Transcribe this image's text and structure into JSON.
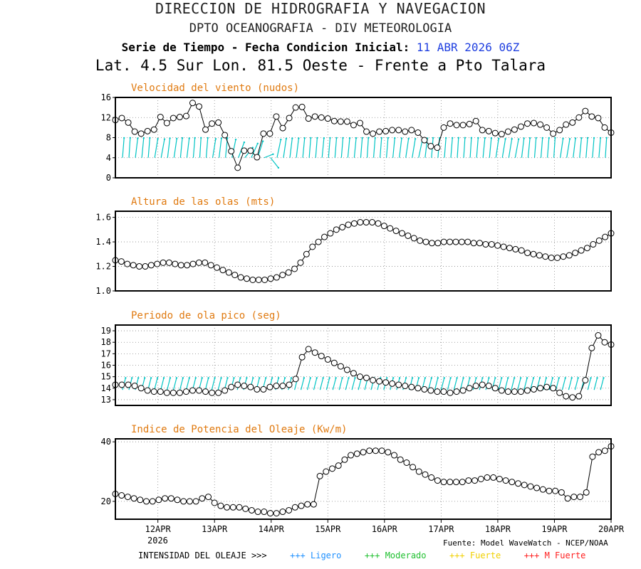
{
  "header": {
    "title": "DIRECCION DE HIDROGRAFIA Y NAVEGACION",
    "subtitle": "DPTO OCEANOGRAFIA - DIV METEOROLOGIA",
    "series_label": "Serie de Tiempo - Fecha Condicion Inicial:",
    "init_date": "11 ABR 2026 06Z",
    "location": "Lat. 4.5 Sur  Lon. 81.5 Oeste - Frente a Pto Talara"
  },
  "x_axis": {
    "start": "11 ABR 2026 06Z",
    "end": "20 ABR 2026 00Z",
    "tick_labels": [
      "12APR",
      "13APR",
      "14APR",
      "15APR",
      "16APR",
      "17APR",
      "18APR",
      "19APR",
      "20APR"
    ],
    "year_label": "2026"
  },
  "footer": {
    "source": "Fuente: Model WaveWatch - NCEP/NOAA",
    "legend_title": "INTENSIDAD DEL OLEAJE >>>",
    "legend_items": [
      {
        "label": "+++ Ligero",
        "color": "#1e90ff"
      },
      {
        "label": "+++ Moderado",
        "color": "#20c030"
      },
      {
        "label": "+++ Fuerte",
        "color": "#f0d000"
      },
      {
        "label": "+++ M Fuerte",
        "color": "#ff2020"
      }
    ]
  },
  "colors": {
    "title": "#e07a10",
    "arrows": "#00c4c4",
    "grid": "#888888",
    "line": "#000000"
  },
  "chart_data": [
    {
      "type": "line",
      "title": "Velocidad del viento (nudos)",
      "ylim": [
        0,
        16
      ],
      "yticks": [
        0,
        4,
        8,
        12,
        16
      ],
      "grid": true,
      "has_arrows": true,
      "arrow_rows": [
        4,
        8
      ],
      "values": [
        11.5,
        11.9,
        11.0,
        9.2,
        8.8,
        9.3,
        9.6,
        12.1,
        10.9,
        11.9,
        12.1,
        12.3,
        14.9,
        14.2,
        9.6,
        10.8,
        11.0,
        8.5,
        5.3,
        2.0,
        5.4,
        5.4,
        4.1,
        8.8,
        8.8,
        12.2,
        9.9,
        11.9,
        14.0,
        14.1,
        11.8,
        12.2,
        12.0,
        11.8,
        11.3,
        11.2,
        11.2,
        10.5,
        10.9,
        9.2,
        8.8,
        9.2,
        9.3,
        9.5,
        9.5,
        9.2,
        9.5,
        9.0,
        7.5,
        6.3,
        6.0,
        10.0,
        10.8,
        10.5,
        10.5,
        10.7,
        11.3,
        9.5,
        9.3,
        8.9,
        8.7,
        9.2,
        9.6,
        10.2,
        10.8,
        10.9,
        10.6,
        10.0,
        8.8,
        9.5,
        10.6,
        11.0,
        12.0,
        13.3,
        12.2,
        11.9,
        10.0,
        9.0
      ],
      "wind_dir": [
        10,
        8,
        15,
        12,
        10,
        20,
        22,
        15,
        18,
        12,
        15,
        10,
        8,
        10,
        20,
        15,
        12,
        25,
        40,
        60,
        45,
        35,
        80,
        120,
        25,
        18,
        15,
        15,
        12,
        10,
        10,
        12,
        10,
        10,
        10,
        12,
        12,
        10,
        8,
        10,
        10,
        10,
        12,
        15,
        18,
        20,
        25,
        15,
        10,
        10,
        10,
        10,
        8,
        8,
        8,
        10,
        12,
        12,
        18,
        20,
        20,
        22,
        15,
        12,
        10,
        10,
        10,
        8,
        18,
        20,
        15,
        12,
        10,
        10,
        10,
        8,
        8,
        8
      ]
    },
    {
      "type": "line",
      "title": "Altura de las olas (mts)",
      "ylim": [
        1.0,
        1.65
      ],
      "yticks": [
        1.0,
        1.2,
        1.4,
        1.6
      ],
      "grid": true,
      "values": [
        1.25,
        1.24,
        1.22,
        1.21,
        1.2,
        1.2,
        1.21,
        1.22,
        1.23,
        1.23,
        1.22,
        1.21,
        1.21,
        1.22,
        1.23,
        1.23,
        1.21,
        1.19,
        1.17,
        1.15,
        1.13,
        1.11,
        1.1,
        1.09,
        1.09,
        1.09,
        1.1,
        1.11,
        1.13,
        1.15,
        1.18,
        1.23,
        1.3,
        1.36,
        1.4,
        1.44,
        1.47,
        1.5,
        1.52,
        1.54,
        1.55,
        1.56,
        1.56,
        1.56,
        1.55,
        1.53,
        1.51,
        1.49,
        1.47,
        1.45,
        1.43,
        1.41,
        1.4,
        1.39,
        1.39,
        1.4,
        1.4,
        1.4,
        1.4,
        1.4,
        1.39,
        1.39,
        1.38,
        1.38,
        1.37,
        1.36,
        1.35,
        1.34,
        1.33,
        1.31,
        1.3,
        1.29,
        1.28,
        1.27,
        1.27,
        1.28,
        1.29,
        1.31,
        1.33,
        1.35,
        1.38,
        1.41,
        1.44,
        1.47
      ]
    },
    {
      "type": "line",
      "title": "Periodo de ola pico (seg)",
      "title_display": "Periodo de ola pico (seg)",
      "ylim": [
        12.5,
        19.5
      ],
      "yticks": [
        13,
        14,
        15,
        16,
        17,
        18,
        19
      ],
      "grid": true,
      "has_arrows": true,
      "arrow_rows": [
        13.85,
        15.0
      ],
      "values": [
        14.3,
        14.3,
        14.3,
        14.2,
        14.0,
        13.8,
        13.7,
        13.7,
        13.6,
        13.6,
        13.6,
        13.7,
        13.8,
        13.8,
        13.7,
        13.6,
        13.6,
        13.8,
        14.1,
        14.3,
        14.2,
        14.1,
        13.9,
        13.9,
        14.1,
        14.2,
        14.2,
        14.3,
        14.8,
        16.7,
        17.4,
        17.1,
        16.8,
        16.5,
        16.2,
        15.9,
        15.6,
        15.3,
        15.0,
        14.9,
        14.7,
        14.6,
        14.5,
        14.4,
        14.3,
        14.2,
        14.1,
        14.0,
        13.9,
        13.8,
        13.7,
        13.7,
        13.6,
        13.7,
        13.8,
        14.0,
        14.2,
        14.3,
        14.2,
        14.0,
        13.8,
        13.7,
        13.7,
        13.7,
        13.8,
        13.9,
        14.0,
        14.1,
        14.0,
        13.6,
        13.3,
        13.2,
        13.3,
        14.7,
        17.5,
        18.6,
        18.0,
        17.8
      ]
    },
    {
      "type": "line",
      "title": "Indice de Potencia del Oleaje (Kw/m)",
      "ylim": [
        14,
        41
      ],
      "yticks": [
        20,
        40
      ],
      "grid": true,
      "values": [
        22.5,
        22.0,
        21.5,
        21.0,
        20.5,
        20.0,
        20.0,
        20.5,
        21.0,
        21.0,
        20.5,
        20.0,
        20.0,
        20.0,
        21.0,
        21.5,
        19.5,
        18.5,
        18.0,
        18.0,
        18.0,
        17.5,
        17.0,
        16.5,
        16.5,
        16.0,
        16.0,
        16.5,
        17.0,
        18.0,
        18.5,
        19.0,
        19.0,
        28.5,
        30.0,
        31.0,
        32.0,
        34.0,
        35.5,
        36.0,
        36.5,
        37.0,
        37.0,
        37.0,
        36.5,
        35.5,
        34.0,
        33.0,
        31.5,
        30.0,
        29.0,
        28.0,
        27.0,
        26.5,
        26.5,
        26.5,
        26.5,
        27.0,
        27.0,
        27.5,
        28.0,
        28.0,
        27.5,
        27.0,
        26.5,
        26.0,
        25.5,
        25.0,
        24.5,
        24.0,
        23.5,
        23.5,
        23.0,
        21.0,
        21.5,
        21.5,
        23.0,
        35.0,
        36.5,
        37.0,
        38.5
      ]
    }
  ]
}
